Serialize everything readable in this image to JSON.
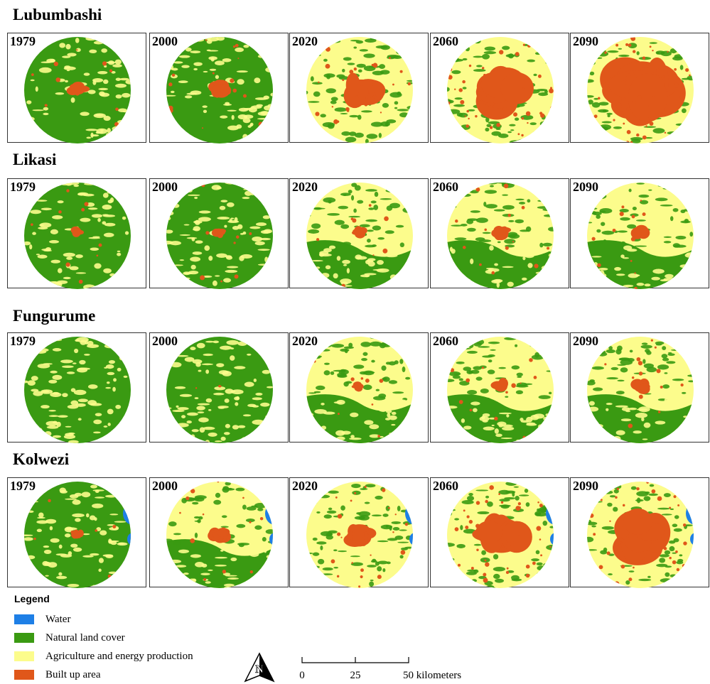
{
  "rows": [
    {
      "title": "Lubumbashi",
      "panels": [
        "1979",
        "2000",
        "2020",
        "2060",
        "2090"
      ]
    },
    {
      "title": "Likasi",
      "panels": [
        "1979",
        "2000",
        "2020",
        "2060",
        "2090"
      ]
    },
    {
      "title": "Fungurume",
      "panels": [
        "1979",
        "2000",
        "2020",
        "2060",
        "2090"
      ]
    },
    {
      "title": "Kolwezi",
      "panels": [
        "1979",
        "2000",
        "2020",
        "2060",
        "2090"
      ]
    }
  ],
  "legend": {
    "title": "Legend",
    "items": [
      {
        "label": "Water",
        "color": "#1e7fe6"
      },
      {
        "label": "Natural land cover",
        "color": "#3a9a12"
      },
      {
        "label": "Agriculture and energy production",
        "color": "#fcfc8c"
      },
      {
        "label": "Built up area",
        "color": "#e0571a"
      }
    ]
  },
  "north_arrow": "N",
  "scale_bar": {
    "labels": [
      "0",
      "25",
      "50 kilometers"
    ]
  }
}
